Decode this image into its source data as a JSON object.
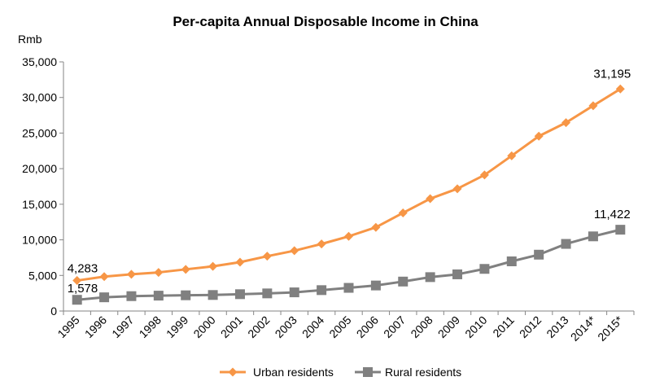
{
  "chart_data": {
    "type": "line",
    "title": "Per-capita Annual Disposable Income in China",
    "ylabel": "Rmb",
    "xlabel": "",
    "ylim": [
      0,
      35000
    ],
    "yticks": [
      0,
      5000,
      10000,
      15000,
      20000,
      25000,
      30000,
      35000
    ],
    "ytick_labels": [
      "0",
      "5,000",
      "10,000",
      "15,000",
      "20,000",
      "25,000",
      "30,000",
      "35,000"
    ],
    "categories": [
      "1995",
      "1996",
      "1997",
      "1998",
      "1999",
      "2000",
      "2001",
      "2002",
      "2003",
      "2004",
      "2005",
      "2006",
      "2007",
      "2008",
      "2009",
      "2010",
      "2011",
      "2012",
      "2013",
      "2014*",
      "2015*"
    ],
    "grid": "none",
    "legend_position": "bottom",
    "series": [
      {
        "name": "Urban residents",
        "color": "#F79646",
        "marker": "diamond",
        "values": [
          4283,
          4839,
          5160,
          5425,
          5854,
          6280,
          6860,
          7703,
          8472,
          9422,
          10493,
          11759,
          13786,
          15781,
          17175,
          19109,
          21810,
          24565,
          26467,
          28844,
          31195
        ]
      },
      {
        "name": "Rural residents",
        "color": "#808080",
        "marker": "square",
        "values": [
          1578,
          1926,
          2090,
          2162,
          2210,
          2253,
          2366,
          2476,
          2622,
          2936,
          3255,
          3587,
          4140,
          4761,
          5153,
          5919,
          6977,
          7917,
          9430,
          10489,
          11422
        ]
      }
    ],
    "data_labels": [
      {
        "series": 0,
        "index": 0,
        "text": "4,283"
      },
      {
        "series": 1,
        "index": 0,
        "text": "1,578"
      },
      {
        "series": 0,
        "index": 20,
        "text": "31,195"
      },
      {
        "series": 1,
        "index": 20,
        "text": "11,422"
      }
    ]
  }
}
